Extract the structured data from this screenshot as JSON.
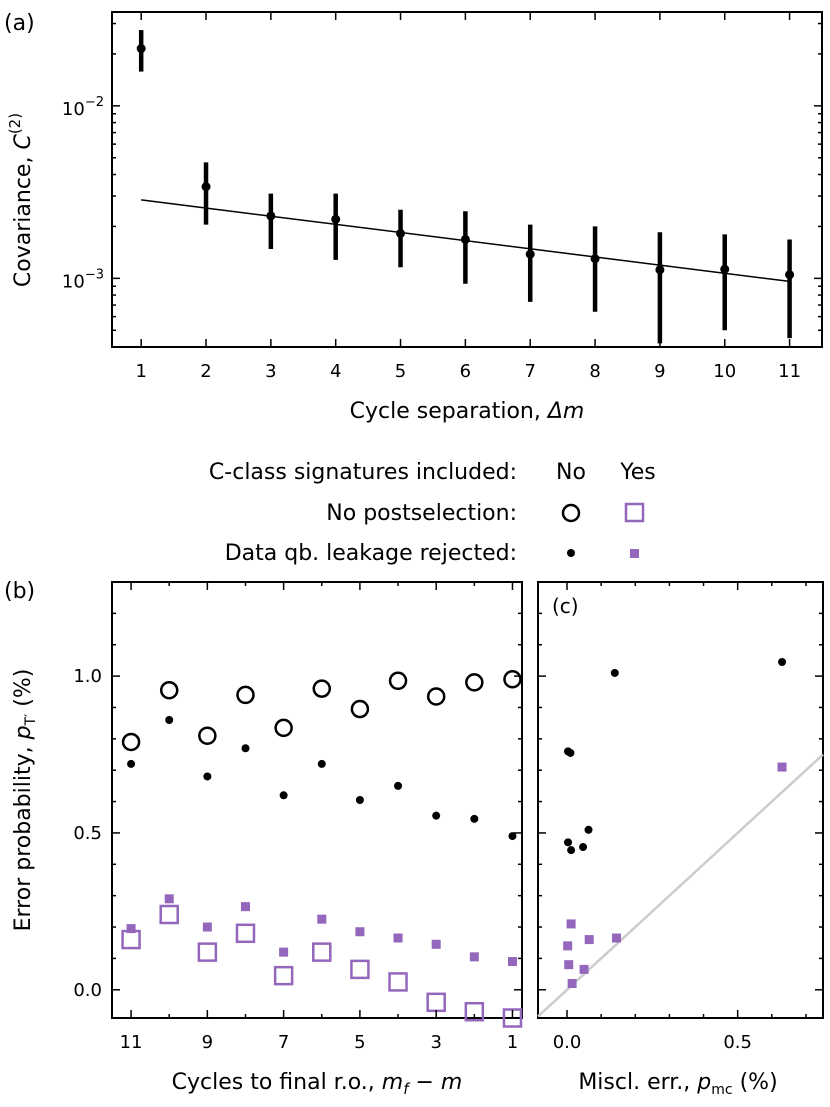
{
  "colors": {
    "black": "#000000",
    "purple": "#9467bd",
    "fit": "#000000",
    "reference": "#cccccc"
  },
  "chart_data": [
    {
      "panel_label": "(a)",
      "type": "scatter",
      "yscale": "log",
      "xlabel": "Cycle separation, Δm",
      "ylabel": "Covariance, C(2)",
      "xlim": [
        0.55,
        11.5
      ],
      "ylim": [
        0.0004,
        0.035
      ],
      "x_ticks": [
        1,
        2,
        3,
        4,
        5,
        6,
        7,
        8,
        9,
        10,
        11
      ],
      "x_tick_labels": [
        "1",
        "2",
        "3",
        "4",
        "5",
        "6",
        "7",
        "8",
        "9",
        "10",
        "11"
      ],
      "y_ticks": [
        0.001,
        0.01
      ],
      "y_tick_labels": [
        {
          "base": "10",
          "exp": "−3"
        },
        {
          "base": "10",
          "exp": "−2"
        }
      ],
      "points": [
        {
          "x": 1,
          "y": 0.0215,
          "lo": 0.0158,
          "hi": 0.0275
        },
        {
          "x": 2,
          "y": 0.0034,
          "lo": 0.00205,
          "hi": 0.0047
        },
        {
          "x": 3,
          "y": 0.0023,
          "lo": 0.00148,
          "hi": 0.0031
        },
        {
          "x": 4,
          "y": 0.0022,
          "lo": 0.00128,
          "hi": 0.0031
        },
        {
          "x": 5,
          "y": 0.00182,
          "lo": 0.00116,
          "hi": 0.0025
        },
        {
          "x": 6,
          "y": 0.00168,
          "lo": 0.00093,
          "hi": 0.00245
        },
        {
          "x": 7,
          "y": 0.00138,
          "lo": 0.00073,
          "hi": 0.00205
        },
        {
          "x": 8,
          "y": 0.0013,
          "lo": 0.00064,
          "hi": 0.002
        },
        {
          "x": 9,
          "y": 0.00112,
          "lo": 0.00042,
          "hi": 0.00185
        },
        {
          "x": 10,
          "y": 0.00113,
          "lo": 0.0005,
          "hi": 0.0018
        },
        {
          "x": 11,
          "y": 0.00105,
          "lo": 0.00045,
          "hi": 0.00168
        }
      ],
      "fit_line": {
        "x": [
          1,
          11
        ],
        "y": [
          0.00285,
          0.00096
        ]
      }
    },
    {
      "panel_label": "(b)",
      "type": "scatter",
      "xlabel": "Cycles to final r.o., mf − m",
      "ylabel": "Error probability, pT′ (%)",
      "x_reversed": true,
      "xlim": [
        11.5,
        0.75
      ],
      "ylim": [
        -0.09,
        1.3
      ],
      "x_ticks": [
        11,
        9,
        7,
        5,
        3,
        1
      ],
      "x_tick_labels": [
        "11",
        "9",
        "7",
        "5",
        "3",
        "1"
      ],
      "y_ticks": [
        0.0,
        0.5,
        1.0
      ],
      "y_tick_labels": [
        "0.0",
        "0.5",
        "1.0"
      ],
      "series": [
        {
          "name": "No postselection, C-class No",
          "marker": "open-circle",
          "color": "#000000",
          "x": [
            11,
            10,
            9,
            8,
            7,
            6,
            5,
            4,
            3,
            2,
            1
          ],
          "y": [
            0.79,
            0.955,
            0.81,
            0.94,
            0.835,
            0.96,
            0.895,
            0.985,
            0.935,
            0.98,
            0.99
          ]
        },
        {
          "name": "Data qb. leakage rejected, C-class No",
          "marker": "dot",
          "color": "#000000",
          "x": [
            11,
            10,
            9,
            8,
            7,
            6,
            5,
            4,
            3,
            2,
            1
          ],
          "y": [
            0.72,
            0.86,
            0.68,
            0.77,
            0.62,
            0.72,
            0.605,
            0.65,
            0.555,
            0.545,
            0.49
          ]
        },
        {
          "name": "No postselection, C-class Yes",
          "marker": "open-square",
          "color": "#9467bd",
          "x": [
            11,
            10,
            9,
            8,
            7,
            6,
            5,
            4,
            3,
            2,
            1
          ],
          "y": [
            0.16,
            0.24,
            0.12,
            0.18,
            0.045,
            0.12,
            0.065,
            0.025,
            -0.04,
            -0.07,
            -0.09
          ]
        },
        {
          "name": "Data qb. leakage rejected, C-class Yes",
          "marker": "small-square",
          "color": "#9467bd",
          "x": [
            11,
            10,
            9,
            8,
            7,
            6,
            5,
            4,
            3,
            2,
            1
          ],
          "y": [
            0.195,
            0.29,
            0.2,
            0.265,
            0.12,
            0.225,
            0.185,
            0.165,
            0.145,
            0.105,
            0.09
          ]
        }
      ]
    },
    {
      "panel_label": "(c)",
      "type": "scatter",
      "xlabel": "Miscl. err., pmc (%)",
      "xlim": [
        -0.085,
        0.75
      ],
      "ylim": [
        -0.09,
        1.3
      ],
      "x_ticks": [
        0.0,
        0.5
      ],
      "x_tick_labels": [
        "0.0",
        "0.5"
      ],
      "series": [
        {
          "name": "C-class No, leakage rejected",
          "marker": "dot",
          "color": "#000000",
          "x": [
            0.003,
            0.01,
            0.003,
            0.012,
            0.047,
            0.063,
            0.14,
            0.63
          ],
          "y": [
            0.76,
            0.755,
            0.47,
            0.445,
            0.455,
            0.51,
            1.01,
            1.045
          ]
        },
        {
          "name": "C-class Yes, leakage rejected",
          "marker": "small-square",
          "color": "#9467bd",
          "x": [
            0.012,
            0.002,
            0.005,
            0.015,
            0.05,
            0.065,
            0.145,
            0.63
          ],
          "y": [
            0.21,
            0.14,
            0.08,
            0.02,
            0.065,
            0.16,
            0.165,
            0.71
          ]
        }
      ],
      "reference_line": {
        "x": [
          -0.085,
          0.75
        ],
        "y": [
          -0.085,
          0.75
        ]
      }
    }
  ],
  "legend": {
    "header_label": "C-class signatures included:",
    "col_no": "No",
    "col_yes": "Yes",
    "row1_label": "No postselection:",
    "row2_label": "Data qb. leakage rejected:"
  },
  "axis_text": {
    "a_xlabel_main": "Cycle separation, ",
    "a_xlabel_var": "Δm",
    "a_ylabel_main": "Covariance, ",
    "a_ylabel_var": "C",
    "a_ylabel_sup": "(2)",
    "b_xlabel_main": "Cycles to final r.o., ",
    "b_xlabel_var1": "m",
    "b_xlabel_sub1": "f",
    "b_xlabel_rest": " − ",
    "b_xlabel_var2": "m",
    "b_ylabel_main": "Error probability, ",
    "b_ylabel_var": "p",
    "b_ylabel_sub": "T′",
    "b_ylabel_unit": " (%)",
    "c_xlabel_main": "Miscl. err., ",
    "c_xlabel_var": "p",
    "c_xlabel_sub": "mc",
    "c_xlabel_unit": " (%)"
  }
}
